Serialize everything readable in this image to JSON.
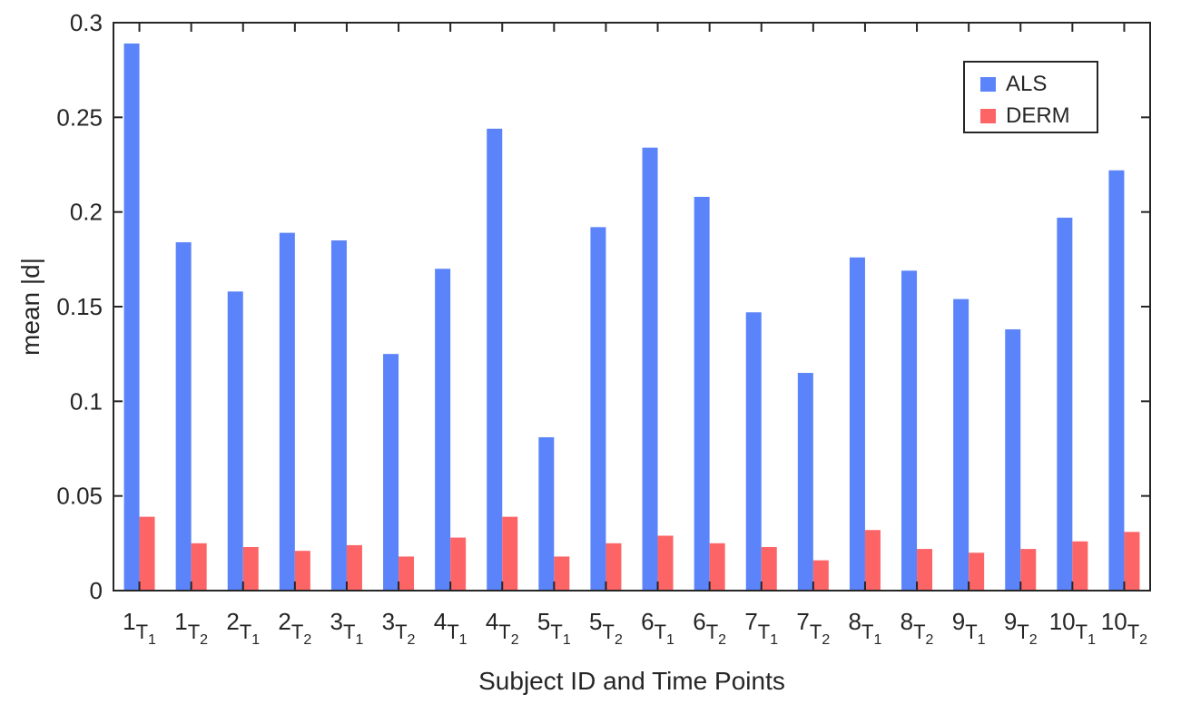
{
  "chart_data": {
    "type": "bar",
    "categories": [
      {
        "id": "1",
        "t": "1"
      },
      {
        "id": "1",
        "t": "2"
      },
      {
        "id": "2",
        "t": "1"
      },
      {
        "id": "2",
        "t": "2"
      },
      {
        "id": "3",
        "t": "1"
      },
      {
        "id": "3",
        "t": "2"
      },
      {
        "id": "4",
        "t": "1"
      },
      {
        "id": "4",
        "t": "2"
      },
      {
        "id": "5",
        "t": "1"
      },
      {
        "id": "5",
        "t": "2"
      },
      {
        "id": "6",
        "t": "1"
      },
      {
        "id": "6",
        "t": "2"
      },
      {
        "id": "7",
        "t": "1"
      },
      {
        "id": "7",
        "t": "2"
      },
      {
        "id": "8",
        "t": "1"
      },
      {
        "id": "8",
        "t": "2"
      },
      {
        "id": "9",
        "t": "1"
      },
      {
        "id": "9",
        "t": "2"
      },
      {
        "id": "10",
        "t": "1"
      },
      {
        "id": "10",
        "t": "2"
      }
    ],
    "category_prefix": "T",
    "series": [
      {
        "name": "ALS",
        "color": "#5b84fa",
        "values": [
          0.289,
          0.184,
          0.158,
          0.189,
          0.185,
          0.125,
          0.17,
          0.244,
          0.081,
          0.192,
          0.234,
          0.208,
          0.147,
          0.115,
          0.176,
          0.169,
          0.154,
          0.138,
          0.197,
          0.222
        ]
      },
      {
        "name": "DERM",
        "color": "#fd6466",
        "values": [
          0.039,
          0.025,
          0.023,
          0.021,
          0.024,
          0.018,
          0.028,
          0.039,
          0.018,
          0.025,
          0.029,
          0.025,
          0.023,
          0.016,
          0.032,
          0.022,
          0.02,
          0.022,
          0.026,
          0.031
        ]
      }
    ],
    "xlabel": "Subject ID and Time Points",
    "ylabel": "mean |d|",
    "ylim": [
      0,
      0.3
    ],
    "yticks": [
      "0",
      "0.05",
      "0.1",
      "0.15",
      "0.2",
      "0.25",
      "0.3"
    ],
    "ytick_values": [
      0,
      0.05,
      0.1,
      0.15,
      0.2,
      0.25,
      0.3
    ],
    "grid": false,
    "legend_position": "top-right",
    "axis_color": "#262626"
  }
}
